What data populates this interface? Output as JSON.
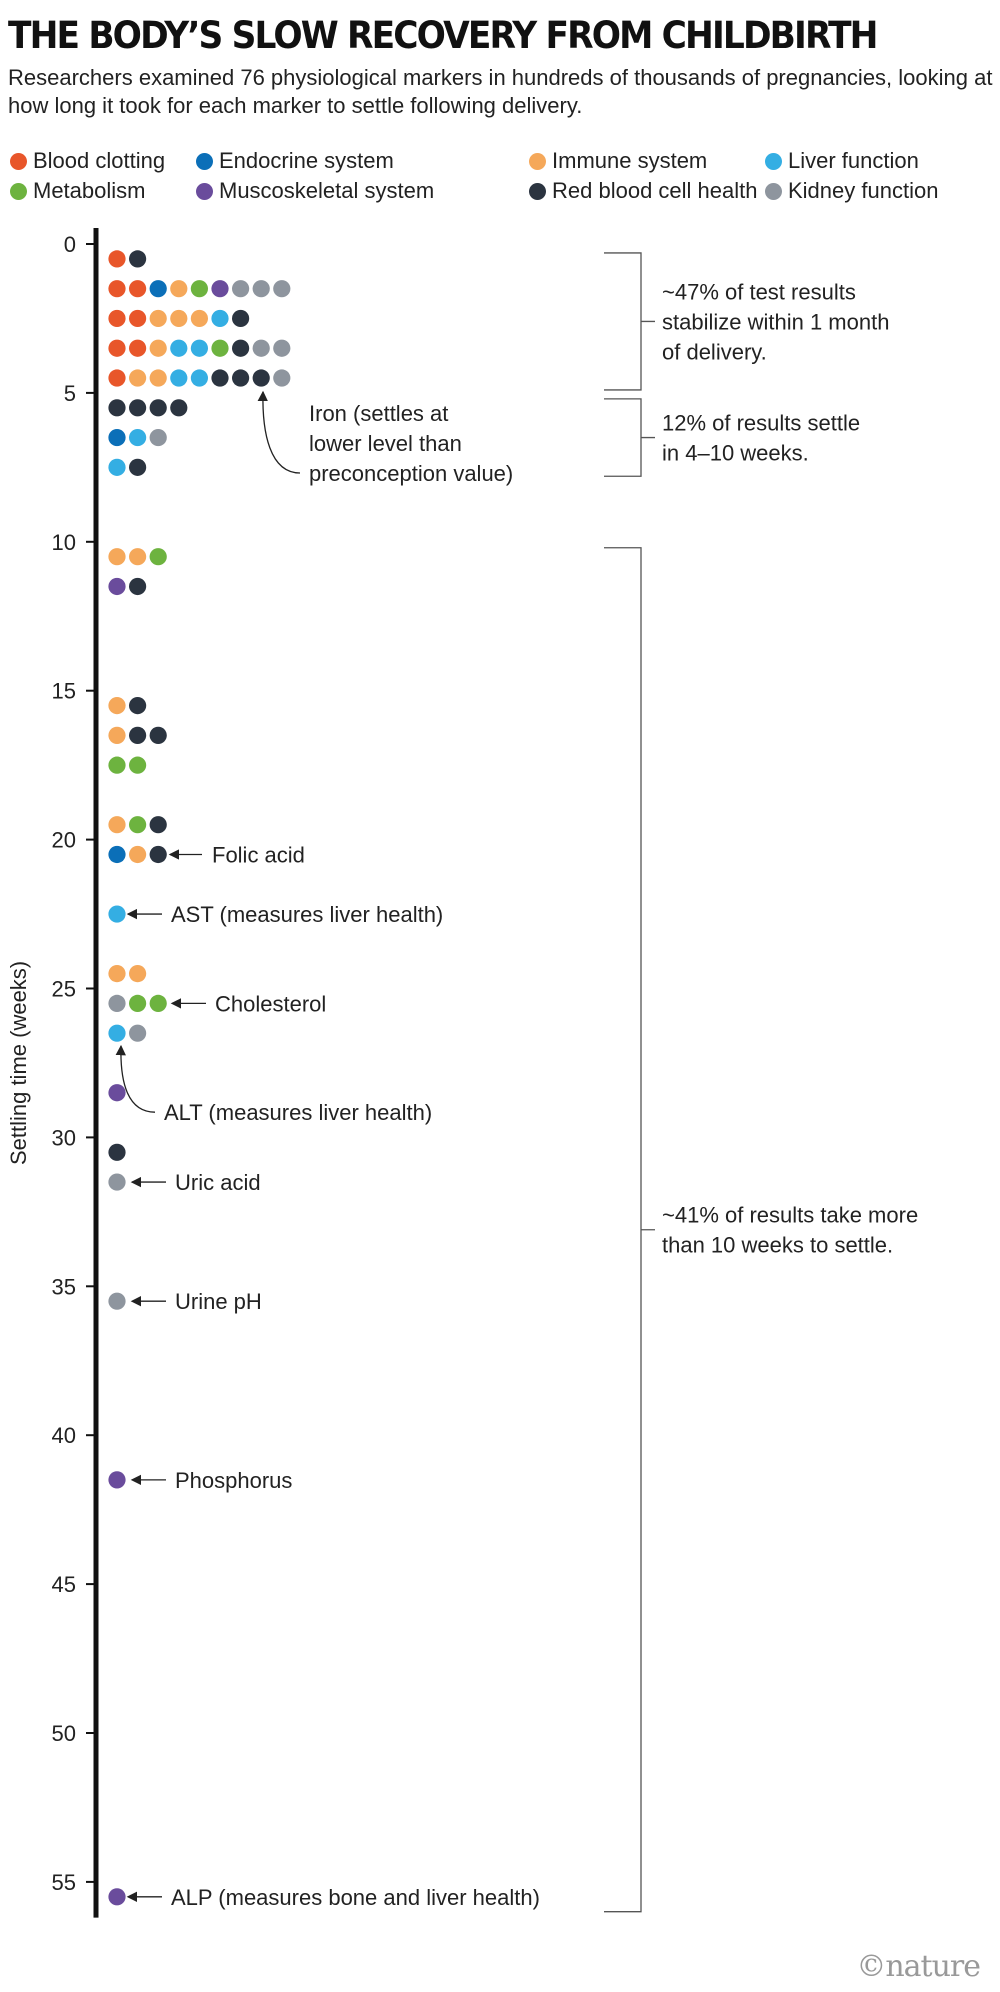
{
  "title": "THE BODY’S SLOW RECOVERY FROM CHILDBIRTH",
  "subtitle": "Researchers examined 76 physiological markers in hundreds of thousands of pregnancies, looking at how long it took for each marker to settle following delivery.",
  "logo": "©nature",
  "chart_data": {
    "type": "scatter",
    "ylabel": "Settling time (weeks)",
    "ylim": [
      0,
      56
    ],
    "yticks": [
      0,
      5,
      10,
      15,
      20,
      25,
      30,
      35,
      40,
      45,
      50,
      55
    ],
    "legend": [
      {
        "key": "clot",
        "name": "Blood clotting",
        "color": "#e8562a"
      },
      {
        "key": "endo",
        "name": "Endocrine system",
        "color": "#0b6fb8"
      },
      {
        "key": "imm",
        "name": "Immune system",
        "color": "#f5a85a"
      },
      {
        "key": "liv",
        "name": "Liver function",
        "color": "#34aee3"
      },
      {
        "key": "met",
        "name": "Metabolism",
        "color": "#6db33f"
      },
      {
        "key": "mus",
        "name": "Muscoskeletal system",
        "color": "#6a4c9c"
      },
      {
        "key": "rbc",
        "name": "Red blood cell health",
        "color": "#2b3440"
      },
      {
        "key": "kid",
        "name": "Kidney function",
        "color": "#8e959e"
      }
    ],
    "rows": [
      {
        "week": 0.5,
        "markers": [
          "clot",
          "rbc"
        ]
      },
      {
        "week": 1.5,
        "markers": [
          "clot",
          "clot",
          "endo",
          "imm",
          "met",
          "mus",
          "kid",
          "kid",
          "kid"
        ]
      },
      {
        "week": 2.5,
        "markers": [
          "clot",
          "clot",
          "imm",
          "imm",
          "imm",
          "liv",
          "rbc"
        ]
      },
      {
        "week": 3.5,
        "markers": [
          "clot",
          "clot",
          "imm",
          "liv",
          "liv",
          "met",
          "rbc",
          "kid",
          "kid"
        ]
      },
      {
        "week": 4.5,
        "markers": [
          "clot",
          "imm",
          "imm",
          "liv",
          "liv",
          "rbc",
          "rbc",
          "rbc",
          "kid"
        ]
      },
      {
        "week": 5.5,
        "markers": [
          "rbc",
          "rbc",
          "rbc",
          "rbc"
        ]
      },
      {
        "week": 6.5,
        "markers": [
          "endo",
          "liv",
          "kid"
        ]
      },
      {
        "week": 7.5,
        "markers": [
          "liv",
          "rbc"
        ]
      },
      {
        "week": 10.5,
        "markers": [
          "imm",
          "imm",
          "met"
        ]
      },
      {
        "week": 11.5,
        "markers": [
          "mus",
          "rbc"
        ]
      },
      {
        "week": 15.5,
        "markers": [
          "imm",
          "rbc"
        ]
      },
      {
        "week": 16.5,
        "markers": [
          "imm",
          "rbc",
          "rbc"
        ]
      },
      {
        "week": 17.5,
        "markers": [
          "met",
          "met"
        ]
      },
      {
        "week": 19.5,
        "markers": [
          "imm",
          "met",
          "rbc"
        ]
      },
      {
        "week": 20.5,
        "markers": [
          "endo",
          "imm",
          "rbc"
        ]
      },
      {
        "week": 22.5,
        "markers": [
          "liv"
        ]
      },
      {
        "week": 24.5,
        "markers": [
          "imm",
          "imm"
        ]
      },
      {
        "week": 25.5,
        "markers": [
          "kid",
          "met",
          "met"
        ]
      },
      {
        "week": 26.5,
        "markers": [
          "liv",
          "kid"
        ]
      },
      {
        "week": 28.5,
        "markers": [
          "mus"
        ]
      },
      {
        "week": 30.5,
        "markers": [
          "rbc"
        ]
      },
      {
        "week": 31.5,
        "markers": [
          "kid"
        ]
      },
      {
        "week": 35.5,
        "markers": [
          "kid"
        ]
      },
      {
        "week": 41.5,
        "markers": [
          "mus"
        ]
      },
      {
        "week": 55.5,
        "markers": [
          "mus"
        ]
      }
    ],
    "annotations": [
      {
        "label": [
          "Iron (settles at",
          "lower level than",
          "preconception value)"
        ],
        "week": 4.5
      },
      {
        "label": [
          "Folic acid"
        ],
        "week": 20.5
      },
      {
        "label": [
          "AST (measures liver health)"
        ],
        "week": 22.5
      },
      {
        "label": [
          "Cholesterol"
        ],
        "week": 25.5
      },
      {
        "label": [
          "ALT (measures liver health)"
        ],
        "week": 26.5
      },
      {
        "label": [
          "Uric acid"
        ],
        "week": 31.5
      },
      {
        "label": [
          "Urine pH"
        ],
        "week": 35.5
      },
      {
        "label": [
          "Phosphorus"
        ],
        "week": 41.5
      },
      {
        "label": [
          "ALP (measures bone and liver health)"
        ],
        "week": 55.5
      }
    ],
    "brackets": [
      {
        "from": 0.3,
        "to": 4.9,
        "label": [
          "~47% of test results",
          "stabilize within 1 month",
          "of delivery."
        ]
      },
      {
        "from": 5.2,
        "to": 7.8,
        "label": [
          "12% of results settle",
          "in 4–10 weeks."
        ]
      },
      {
        "from": 10.2,
        "to": 56,
        "label": [
          "~41% of results take more",
          "than 10 weeks to settle."
        ]
      }
    ]
  }
}
